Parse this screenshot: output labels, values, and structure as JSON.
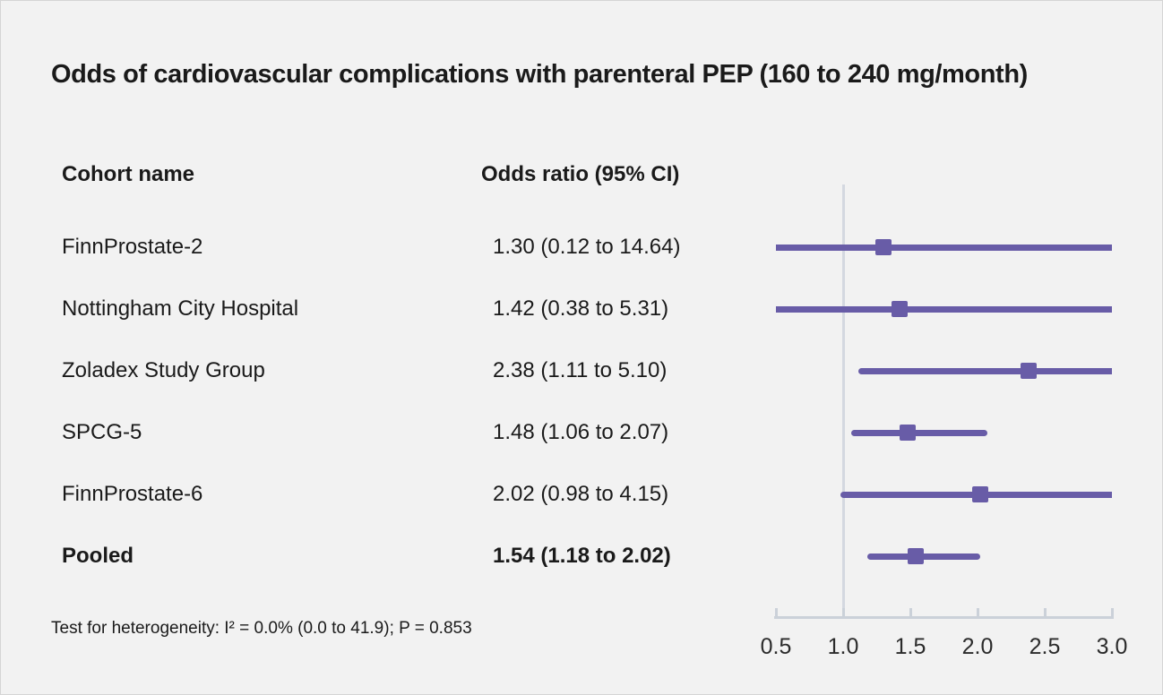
{
  "title": "Odds of cardiovascular complications with parenteral PEP (160 to 240 mg/month)",
  "columns": {
    "cohort": "Cohort name",
    "odds_ratio": "Odds ratio (95% CI)"
  },
  "footnote": "Test for heterogeneity: I² = 0.0% (0.0 to 41.9); P = 0.853",
  "colors": {
    "marker": "#685ca7",
    "ci_line": "#685ca7",
    "ref_line": "#d4d8e0",
    "axis": "#cbd1d9",
    "text": "#1a1a1a",
    "background": "#f2f2f2"
  },
  "chart_data": {
    "type": "forest",
    "title": "Odds of cardiovascular complications with parenteral PEP (160 to 240 mg/month)",
    "xlim": [
      0.5,
      3.0
    ],
    "ref_value": 1.0,
    "ticks": [
      0.5,
      1.0,
      1.5,
      2.0,
      2.5,
      3.0
    ],
    "tick_labels": [
      "0.5",
      "1.0",
      "1.5",
      "2.0",
      "2.5",
      "3.0"
    ],
    "rows": [
      {
        "cohort": "FinnProstate-2",
        "or_text": "1.30 (0.12 to 14.64)",
        "or": 1.3,
        "lo": 0.12,
        "hi": 14.64,
        "bold": false
      },
      {
        "cohort": "Nottingham City Hospital",
        "or_text": "1.42 (0.38 to 5.31)",
        "or": 1.42,
        "lo": 0.38,
        "hi": 5.31,
        "bold": false
      },
      {
        "cohort": "Zoladex Study Group",
        "or_text": "2.38 (1.11 to 5.10)",
        "or": 2.38,
        "lo": 1.11,
        "hi": 5.1,
        "bold": false
      },
      {
        "cohort": "SPCG-5",
        "or_text": "1.48 (1.06 to 2.07)",
        "or": 1.48,
        "lo": 1.06,
        "hi": 2.07,
        "bold": false
      },
      {
        "cohort": "FinnProstate-6",
        "or_text": "2.02 (0.98 to 4.15)",
        "or": 2.02,
        "lo": 0.98,
        "hi": 4.15,
        "bold": false
      },
      {
        "cohort": "Pooled",
        "or_text": "1.54 (1.18 to 2.02)",
        "or": 1.54,
        "lo": 1.18,
        "hi": 2.02,
        "bold": true
      }
    ]
  }
}
